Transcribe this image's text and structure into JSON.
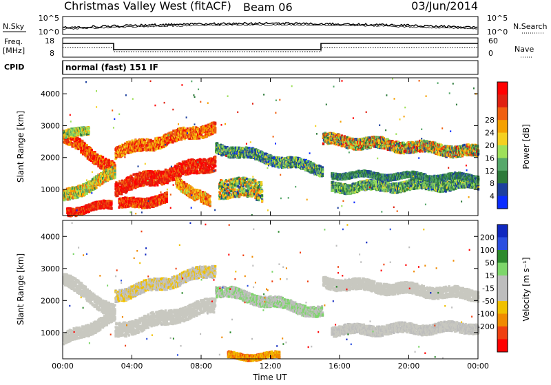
{
  "header": {
    "station": "Christmas Valley West (fitACF)",
    "beam": "Beam 06",
    "date": "03/Jun/2014"
  },
  "noise_panel": {
    "left_label": "N.Sky",
    "left_tick_high": "10^5",
    "left_tick_low": "10^0",
    "right_label": "N.Search",
    "right_tick_high": "10^5",
    "right_tick_low": "10^0"
  },
  "freq_panel": {
    "left_label_line1": "Freq.",
    "left_label_line2": "[MHz]",
    "left_ticks": [
      "18",
      "8"
    ],
    "right_label": "Nave",
    "right_ticks": [
      "60",
      "0"
    ]
  },
  "cpid_panel": {
    "label": "CPID",
    "program": "normal (fast) 151 IF"
  },
  "colors": {
    "power_scale": [
      "#0a2cff",
      "#1c3f9e",
      "#2d7a3a",
      "#56a86a",
      "#9ee05a",
      "#f5d020",
      "#f5a000",
      "#f06010",
      "#e02010",
      "#ff0000"
    ],
    "velocity_scale": [
      "#1028c0",
      "#2b4fe0",
      "#2d8a2d",
      "#7dd66a",
      "#bdbdbd",
      "#bdbdbd",
      "#f0c000",
      "#f08a00",
      "#f04010",
      "#ff0000"
    ],
    "ground_scatter": "#c8c8c0"
  },
  "chart_data": [
    {
      "type": "heatmap",
      "title": "Power",
      "ylabel": "Slant Range [km]",
      "xlabel": "",
      "xlim": [
        0,
        24
      ],
      "ylim": [
        180,
        4500
      ],
      "x_ticks": [
        0,
        4,
        8,
        12,
        16,
        20,
        24
      ],
      "y_ticks": [
        1000,
        2000,
        3000,
        4000
      ],
      "y_tick_labels": [
        "1000",
        "2000",
        "3000",
        "4000"
      ],
      "colorbar": {
        "label": "Power [dB]",
        "tick_labels": [
          "4",
          "8",
          "12",
          "16",
          "20",
          "24",
          "28"
        ],
        "range": [
          0,
          30
        ]
      },
      "scatter_bands": [
        {
          "start": 0.0,
          "end": 3.0,
          "r0": 2700,
          "r1": 1650,
          "half_width": 200,
          "value": 24,
          "spread": 6
        },
        {
          "start": 0.0,
          "end": 1.5,
          "r0": 2700,
          "r1": 2950,
          "half_width": 120,
          "value": 14,
          "spread": 6
        },
        {
          "start": 0.0,
          "end": 3.0,
          "r0": 800,
          "r1": 1550,
          "half_width": 180,
          "value": 16,
          "spread": 8
        },
        {
          "start": 0.2,
          "end": 2.8,
          "r0": 350,
          "r1": 550,
          "half_width": 120,
          "value": 26,
          "spread": 4
        },
        {
          "start": 3.0,
          "end": 8.8,
          "r0": 1100,
          "r1": 1900,
          "half_width": 220,
          "value": 26,
          "spread": 4
        },
        {
          "start": 3.0,
          "end": 8.8,
          "r0": 2200,
          "r1": 3000,
          "half_width": 180,
          "value": 22,
          "spread": 6
        },
        {
          "start": 3.2,
          "end": 6.0,
          "r0": 550,
          "r1": 750,
          "half_width": 150,
          "value": 25,
          "spread": 5
        },
        {
          "start": 6.5,
          "end": 8.5,
          "r0": 1300,
          "r1": 600,
          "half_width": 180,
          "value": 20,
          "spread": 6
        },
        {
          "start": 8.8,
          "end": 15.0,
          "r0": 2350,
          "r1": 1650,
          "half_width": 160,
          "value": 9,
          "spread": 7
        },
        {
          "start": 9.0,
          "end": 11.5,
          "r0": 1100,
          "r1": 1000,
          "half_width": 300,
          "value": 14,
          "spread": 10
        },
        {
          "start": 15.0,
          "end": 24.0,
          "r0": 2600,
          "r1": 2200,
          "half_width": 170,
          "value": 16,
          "spread": 12
        },
        {
          "start": 15.5,
          "end": 24.0,
          "r0": 1100,
          "r1": 1200,
          "half_width": 150,
          "value": 10,
          "spread": 6
        },
        {
          "start": 15.5,
          "end": 24.0,
          "r0": 1500,
          "r1": 1400,
          "half_width": 90,
          "value": 8,
          "spread": 4
        }
      ]
    },
    {
      "type": "heatmap",
      "title": "Velocity",
      "ylabel": "Slant Range [km]",
      "xlabel": "Time UT",
      "xlim": [
        0,
        24
      ],
      "ylim": [
        180,
        4500
      ],
      "x_ticks": [
        0,
        4,
        8,
        12,
        16,
        20,
        24
      ],
      "x_tick_labels": [
        "00:00",
        "04:00",
        "08:00",
        "12:00",
        "16:00",
        "20:00",
        "00:00"
      ],
      "y_ticks": [
        1000,
        2000,
        3000,
        4000
      ],
      "y_tick_labels": [
        "1000",
        "2000",
        "3000",
        "4000"
      ],
      "colorbar": {
        "label": "Velocity [m s⁻¹]",
        "tick_labels": [
          "200",
          "100",
          "50",
          "15",
          "-15",
          "-50",
          "-100",
          "-200"
        ],
        "range": [
          -250,
          250
        ]
      },
      "scatter_bands": [
        {
          "start": 0.0,
          "end": 3.0,
          "r0": 2700,
          "r1": 1650,
          "half_width": 200,
          "value": 0,
          "spread": 10
        },
        {
          "start": 0.0,
          "end": 3.0,
          "r0": 800,
          "r1": 1550,
          "half_width": 180,
          "value": 0,
          "spread": 10
        },
        {
          "start": 3.0,
          "end": 8.8,
          "r0": 1100,
          "r1": 1900,
          "half_width": 220,
          "value": 0,
          "spread": 10
        },
        {
          "start": 3.0,
          "end": 8.8,
          "r0": 2200,
          "r1": 3000,
          "half_width": 180,
          "value": -30,
          "spread": 60
        },
        {
          "start": 8.8,
          "end": 15.0,
          "r0": 2350,
          "r1": 1650,
          "half_width": 160,
          "value": 40,
          "spread": 30
        },
        {
          "start": 9.5,
          "end": 12.5,
          "r0": 300,
          "r1": 300,
          "half_width": 90,
          "value": -110,
          "spread": 60
        },
        {
          "start": 15.0,
          "end": 24.0,
          "r0": 2600,
          "r1": 2200,
          "half_width": 170,
          "value": 0,
          "spread": 10
        },
        {
          "start": 15.5,
          "end": 24.0,
          "r0": 1100,
          "r1": 1200,
          "half_width": 150,
          "value": 0,
          "spread": 25
        }
      ]
    }
  ]
}
